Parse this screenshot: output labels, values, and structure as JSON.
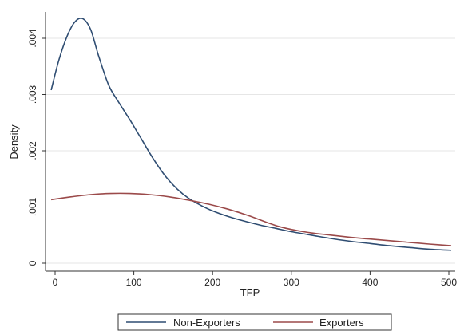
{
  "chart_data": {
    "type": "line",
    "xlabel": "TFP",
    "ylabel": "Density",
    "xlim": [
      -10,
      510
    ],
    "ylim": [
      0,
      0.0044
    ],
    "x_ticks": [
      {
        "value": 0,
        "label": "0"
      },
      {
        "value": 100,
        "label": "100"
      },
      {
        "value": 200,
        "label": "200"
      },
      {
        "value": 300,
        "label": "300"
      },
      {
        "value": 400,
        "label": "400"
      },
      {
        "value": 500,
        "label": "500"
      }
    ],
    "y_ticks": [
      {
        "value": 0,
        "label": "0"
      },
      {
        "value": 0.001,
        "label": ".001"
      },
      {
        "value": 0.002,
        "label": ".002"
      },
      {
        "value": 0.003,
        "label": ".003"
      },
      {
        "value": 0.004,
        "label": ".004"
      }
    ],
    "grid": "horizontal",
    "legend_position": "bottom",
    "series": [
      {
        "name": "Non-Exporters",
        "color": "#2f4d72",
        "points": [
          [
            -5,
            0.00308
          ],
          [
            5,
            0.00362
          ],
          [
            15,
            0.00403
          ],
          [
            25,
            0.00429
          ],
          [
            35,
            0.00435
          ],
          [
            45,
            0.00416
          ],
          [
            55,
            0.0037
          ],
          [
            68,
            0.00317
          ],
          [
            80,
            0.00288
          ],
          [
            95,
            0.00255
          ],
          [
            110,
            0.0022
          ],
          [
            125,
            0.00185
          ],
          [
            140,
            0.00155
          ],
          [
            155,
            0.00132
          ],
          [
            170,
            0.00115
          ],
          [
            185,
            0.00103
          ],
          [
            200,
            0.00093
          ],
          [
            220,
            0.00083
          ],
          [
            240,
            0.00075
          ],
          [
            260,
            0.00068
          ],
          [
            280,
            0.00062
          ],
          [
            300,
            0.00056
          ],
          [
            325,
            0.0005
          ],
          [
            350,
            0.00044
          ],
          [
            375,
            0.00039
          ],
          [
            400,
            0.00035
          ],
          [
            425,
            0.00031
          ],
          [
            450,
            0.00028
          ],
          [
            475,
            0.00025
          ],
          [
            503,
            0.00023
          ]
        ]
      },
      {
        "name": "Exporters",
        "color": "#9b4a4a",
        "points": [
          [
            -5,
            0.00113
          ],
          [
            20,
            0.00118
          ],
          [
            45,
            0.00122
          ],
          [
            70,
            0.00124
          ],
          [
            95,
            0.00124
          ],
          [
            120,
            0.00122
          ],
          [
            145,
            0.00118
          ],
          [
            170,
            0.00112
          ],
          [
            195,
            0.00105
          ],
          [
            220,
            0.00096
          ],
          [
            245,
            0.00085
          ],
          [
            270,
            0.00072
          ],
          [
            285,
            0.00065
          ],
          [
            300,
            0.0006
          ],
          [
            325,
            0.00054
          ],
          [
            350,
            0.0005
          ],
          [
            375,
            0.00046
          ],
          [
            400,
            0.00043
          ],
          [
            425,
            0.0004
          ],
          [
            450,
            0.00037
          ],
          [
            475,
            0.00034
          ],
          [
            503,
            0.00031
          ]
        ]
      }
    ]
  }
}
